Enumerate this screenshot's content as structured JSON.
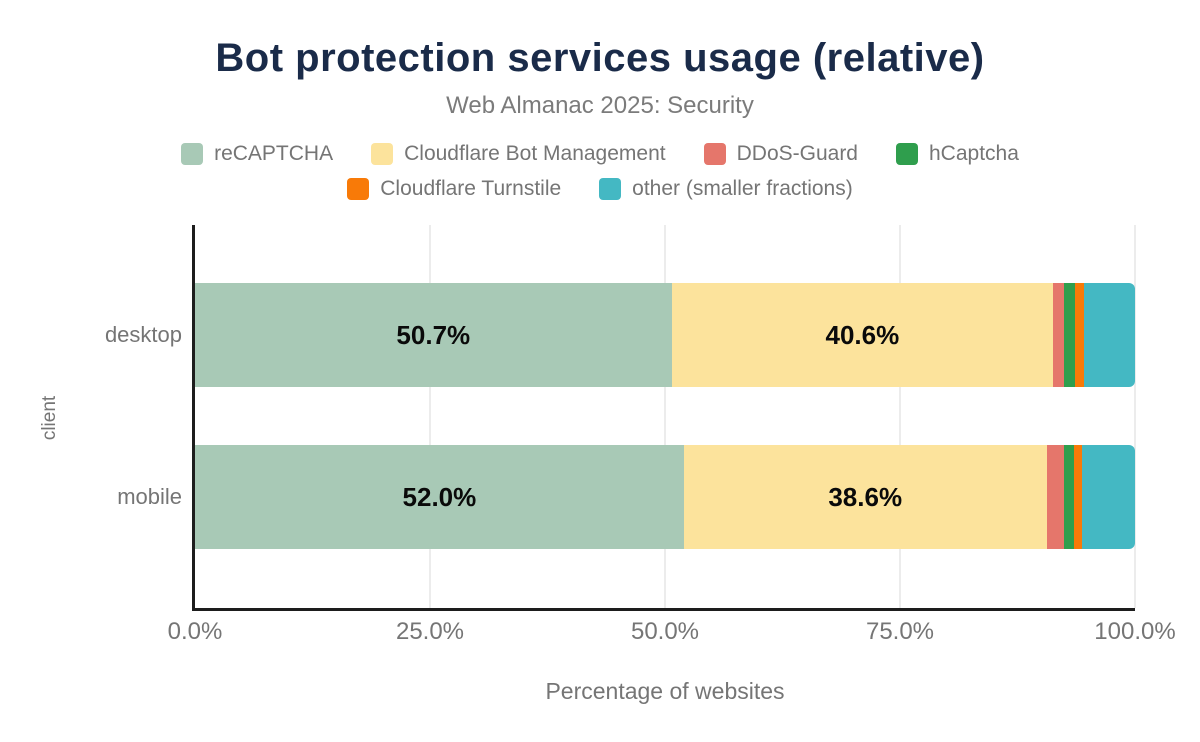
{
  "header": {
    "title": "Bot protection services usage (relative)",
    "subtitle": "Web Almanac 2025: Security"
  },
  "colors": {
    "title": "#1a2b49",
    "muted_text": "#757575",
    "axis_line": "#1d1d1d",
    "gridline": "#ececec",
    "value_label": "#0a0a0a"
  },
  "chart_data": {
    "type": "bar",
    "orientation": "horizontal-stacked",
    "title": "Bot protection services usage (relative)",
    "subtitle": "Web Almanac 2025: Security",
    "categories": [
      "desktop",
      "mobile"
    ],
    "series": [
      {
        "name": "reCAPTCHA",
        "color": "#a8c9b6",
        "values": [
          50.7,
          52.0
        ]
      },
      {
        "name": "Cloudflare Bot Management",
        "color": "#fce39c",
        "values": [
          40.6,
          38.6
        ]
      },
      {
        "name": "DDoS-Guard",
        "color": "#e5766b",
        "values": [
          1.1,
          1.9
        ]
      },
      {
        "name": "hCaptcha",
        "color": "#2f9e4d",
        "values": [
          1.2,
          1.0
        ]
      },
      {
        "name": "Cloudflare Turnstile",
        "color": "#f87a08",
        "values": [
          1.0,
          0.9
        ]
      },
      {
        "name": "other (smaller fractions)",
        "color": "#44b8c3",
        "values": [
          5.4,
          5.6
        ]
      }
    ],
    "value_labels": {
      "desktop": [
        "50.7%",
        "40.6%"
      ],
      "mobile": [
        "52.0%",
        "38.6%"
      ]
    },
    "xlabel": "Percentage of websites",
    "ylabel": "client",
    "xlim": [
      0,
      100
    ],
    "x_ticks": [
      {
        "label": "0.0%",
        "value": 0
      },
      {
        "label": "25.0%",
        "value": 25
      },
      {
        "label": "50.0%",
        "value": 50
      },
      {
        "label": "75.0%",
        "value": 75
      },
      {
        "label": "100.0%",
        "value": 100
      }
    ],
    "grid": "vertical",
    "legend_position": "top"
  }
}
